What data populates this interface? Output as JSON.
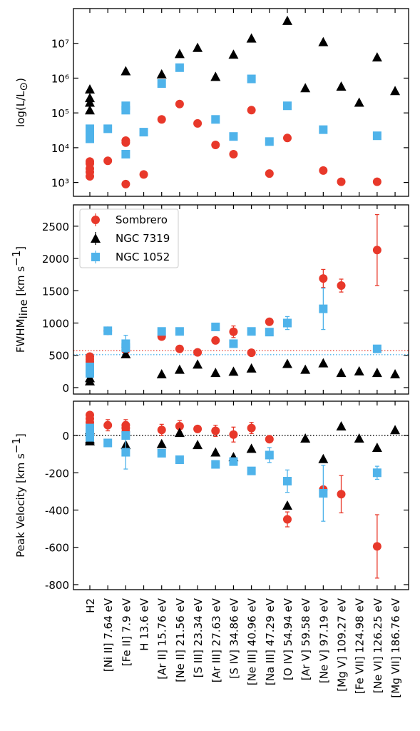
{
  "chart_data": [
    {
      "type": "scatter",
      "log_y": true,
      "ylabel": [
        [
          "log(L/L",
          ""
        ],
        [
          "⊙",
          "sub"
        ],
        [
          ")",
          ""
        ]
      ],
      "ylim": [
        400,
        100000000
      ],
      "yticks": [
        {
          "value": 1000,
          "label": "10³"
        },
        {
          "value": 10000,
          "label": "10⁴"
        },
        {
          "value": 100000,
          "label": "10⁵"
        },
        {
          "value": 1000000,
          "label": "10⁶"
        },
        {
          "value": 10000000,
          "label": "10⁷"
        }
      ],
      "series": [
        {
          "color": "#e8382a",
          "marker": "o",
          "x": [
            "H2",
            "H2",
            "H2",
            "H2",
            "H2",
            "[Ni II] 7.64 eV",
            "[Fe II] 7.9 eV",
            "[Fe II] 7.9 eV",
            "[Fe II] 7.9 eV",
            "H 13.6 eV",
            "[Ar II] 15.76 eV",
            "[Ne II] 21.56 eV",
            "[S III] 23.34 eV",
            "[Ar III] 27.63 eV",
            "[S IV] 34.86 eV",
            "[Ne III] 40.96 eV",
            "[Na III] 47.29 eV",
            "[O IV] 54.94 eV",
            "[Ne V] 97.19 eV",
            "[Mg V] 109.27 eV",
            "[Ne VI] 126.25 eV"
          ],
          "values": [
            4000,
            3500,
            2500,
            2000,
            1500,
            4200,
            900,
            14000,
            16000,
            1700,
            65000,
            180000,
            50000,
            12000,
            6500,
            120000,
            1800,
            19000,
            2200,
            1050,
            1050
          ]
        },
        {
          "color": "#000000",
          "marker": "^",
          "x": [
            "H2",
            "H2",
            "H2",
            "H2",
            "[Fe II] 7.9 eV",
            "[Ar II] 15.76 eV",
            "[Ne II] 21.56 eV",
            "[S III] 23.34 eV",
            "[Ar III] 27.63 eV",
            "[S IV] 34.86 eV",
            "[Ne III] 40.96 eV",
            "[O IV] 54.94 eV",
            "[Ar V] 59.58 eV",
            "[Ne V] 97.19 eV",
            "[Mg V] 109.27 eV",
            "[Fe VII] 124.98 eV",
            "[Ne VI] 126.25 eV",
            "[Mg VII] 186.76 eV"
          ],
          "values": [
            480000,
            270000,
            200000,
            120000,
            1600000,
            1300000,
            5000000,
            7500000,
            1100000,
            4800000,
            14000000,
            45000000,
            520000,
            11000000,
            580000,
            200000,
            4000000,
            430000
          ]
        },
        {
          "color": "#4fb3ea",
          "marker": "s",
          "x": [
            "H2",
            "H2",
            "H2",
            "H2",
            "[Ni II] 7.64 eV",
            "[Fe II] 7.9 eV",
            "[Fe II] 7.9 eV",
            "[Fe II] 7.9 eV",
            "H 13.6 eV",
            "[Ar II] 15.76 eV",
            "[Ne II] 21.56 eV",
            "[Ar III] 27.63 eV",
            "[S IV] 34.86 eV",
            "[Ne III] 40.96 eV",
            "[Na III] 47.29 eV",
            "[O IV] 54.94 eV",
            "[Ne V] 97.19 eV",
            "[Ne VI] 126.25 eV"
          ],
          "values": [
            35000,
            28000,
            22000,
            18000,
            35000,
            160000,
            120000,
            6500,
            28000,
            700000,
            2000000,
            65000,
            21000,
            950000,
            15000,
            160000,
            33000,
            22000
          ]
        }
      ]
    },
    {
      "type": "scatter",
      "legend": "upper left",
      "ylabel": [
        [
          "FWHM",
          ""
        ],
        [
          "line",
          "sub"
        ],
        [
          " [km s",
          ""
        ],
        [
          "−1",
          "sup"
        ],
        [
          "]",
          ""
        ]
      ],
      "ylim": [
        -100,
        2830
      ],
      "yticks": [
        0,
        500,
        1000,
        1500,
        2000,
        2500
      ],
      "hlines": [
        {
          "value": 570,
          "color": "#e8382a"
        },
        {
          "value": 510,
          "color": "#4fb3ea"
        }
      ],
      "series": [
        {
          "name": "Sombrero",
          "color": "#e8382a",
          "marker": "o",
          "x": [
            "H2",
            "H2",
            "H2",
            "H2",
            "[Ni II] 7.64 eV",
            "[Fe II] 7.9 eV",
            "[Fe II] 7.9 eV",
            "[Ar II] 15.76 eV",
            "[Ne II] 21.56 eV",
            "[S III] 23.34 eV",
            "[Ar III] 27.63 eV",
            "[S IV] 34.86 eV",
            "[Ne III] 40.96 eV",
            "[Na III] 47.29 eV",
            "[O IV] 54.94 eV",
            "[Ne V] 97.19 eV",
            "[Mg V] 109.27 eV",
            "[Ne VI] 126.25 eV"
          ],
          "values": [
            480,
            440,
            400,
            350,
            880,
            620,
            580,
            790,
            600,
            545,
            730,
            865,
            540,
            1020,
            1000,
            1690,
            1580,
            2130
          ],
          "errors": [
            null,
            null,
            null,
            null,
            50,
            null,
            null,
            null,
            null,
            null,
            null,
            90,
            null,
            null,
            null,
            140,
            100,
            550
          ]
        },
        {
          "name": "NGC 7319",
          "color": "#000000",
          "marker": "^",
          "x": [
            "H2",
            "H2",
            "[Fe II] 7.9 eV",
            "[Ar II] 15.76 eV",
            "[Ne II] 21.56 eV",
            "[S III] 23.34 eV",
            "[Ar III] 27.63 eV",
            "[S IV] 34.86 eV",
            "[Ne III] 40.96 eV",
            "[O IV] 54.94 eV",
            "[Ar V] 59.58 eV",
            "[Ne V] 97.19 eV",
            "[Mg V] 109.27 eV",
            "[Fe VII] 124.98 eV",
            "[Ne VI] 126.25 eV",
            "[Mg VII] 186.76 eV"
          ],
          "values": [
            150,
            100,
            520,
            210,
            280,
            360,
            230,
            250,
            300,
            370,
            280,
            380,
            230,
            255,
            230,
            210
          ]
        },
        {
          "name": "NGC 1052",
          "color": "#4fb3ea",
          "marker": "s",
          "x": [
            "H2",
            "H2",
            "H2",
            "[Ni II] 7.64 eV",
            "[Fe II] 7.9 eV",
            "[Fe II] 7.9 eV",
            "[Ar II] 15.76 eV",
            "[Ne II] 21.56 eV",
            "[Ar III] 27.63 eV",
            "[S IV] 34.86 eV",
            "[Ne III] 40.96 eV",
            "[Na III] 47.29 eV",
            "[O IV] 54.94 eV",
            "[Ne V] 97.19 eV",
            "[Ne VI] 126.25 eV"
          ],
          "values": [
            320,
            280,
            220,
            880,
            680,
            620,
            870,
            870,
            940,
            680,
            870,
            860,
            1000,
            1220,
            600
          ],
          "errors": [
            null,
            null,
            null,
            null,
            130,
            null,
            null,
            null,
            null,
            null,
            null,
            null,
            100,
            320,
            null
          ]
        }
      ]
    },
    {
      "type": "scatter",
      "ylabel": [
        [
          "Peak Velocity [km s",
          ""
        ],
        [
          "−1",
          "sup"
        ],
        [
          "]",
          ""
        ]
      ],
      "ylim": [
        -827,
        184
      ],
      "yticks": [
        -800,
        -600,
        -400,
        -200,
        0
      ],
      "hlines": [
        {
          "value": 0,
          "color": "#000000"
        }
      ],
      "categories": [
        "H2",
        "[Ni II] 7.64 eV",
        "[Fe II] 7.9 eV",
        "H 13.6 eV",
        "[Ar II] 15.76 eV",
        "[Ne II] 21.56 eV",
        "[S III] 23.34 eV",
        "[Ar III] 27.63 eV",
        "[S IV] 34.86 eV",
        "[Ne III] 40.96 eV",
        "[Na III] 47.29 eV",
        "[O IV] 54.94 eV",
        "[Ar V] 59.58 eV",
        "[Ne V] 97.19 eV",
        "[Mg V] 109.27 eV",
        "[Fe VII] 124.98 eV",
        "[Ne VI] 126.25 eV",
        "[Mg VII] 186.76 eV"
      ],
      "series": [
        {
          "color": "#e8382a",
          "marker": "o",
          "x": [
            "H2",
            "H2",
            "H2",
            "H2",
            "H2",
            "[Ni II] 7.64 eV",
            "[Fe II] 7.9 eV",
            "[Fe II] 7.9 eV",
            "[Fe II] 7.9 eV",
            "[Ar II] 15.76 eV",
            "[Ne II] 21.56 eV",
            "[S III] 23.34 eV",
            "[Ar III] 27.63 eV",
            "[S IV] 34.86 eV",
            "[Ne III] 40.96 eV",
            "[Na III] 47.29 eV",
            "[O IV] 54.94 eV",
            "[Ne V] 97.19 eV",
            "[Mg V] 109.27 eV",
            "[Ne VI] 126.25 eV"
          ],
          "values": [
            110,
            90,
            70,
            50,
            40,
            55,
            55,
            40,
            20,
            30,
            50,
            35,
            25,
            5,
            40,
            -20,
            -450,
            -290,
            -315,
            -595
          ],
          "errors": [
            null,
            null,
            null,
            null,
            null,
            30,
            30,
            null,
            null,
            30,
            30,
            null,
            30,
            40,
            30,
            null,
            40,
            null,
            100,
            170
          ]
        },
        {
          "color": "#000000",
          "marker": "^",
          "x": [
            "H2",
            "H2",
            "H2",
            "[Fe II] 7.9 eV",
            "[Ar II] 15.76 eV",
            "[Ne II] 21.56 eV",
            "[S III] 23.34 eV",
            "[Ar III] 27.63 eV",
            "[S IV] 34.86 eV",
            "[Ne III] 40.96 eV",
            "[O IV] 54.94 eV",
            "[Ar V] 59.58 eV",
            "[Ne V] 97.19 eV",
            "[Mg V] 109.27 eV",
            "[Fe VII] 124.98 eV",
            "[Ne VI] 126.25 eV",
            "[Mg VII] 186.76 eV"
          ],
          "values": [
            30,
            -20,
            -30,
            -50,
            -45,
            15,
            -50,
            -90,
            -115,
            -70,
            -375,
            -15,
            -125,
            50,
            -15,
            -65,
            30
          ]
        },
        {
          "color": "#4fb3ea",
          "marker": "s",
          "x": [
            "H2",
            "H2",
            "H2",
            "[Ni II] 7.64 eV",
            "[Fe II] 7.9 eV",
            "[Fe II] 7.9 eV",
            "[Ar II] 15.76 eV",
            "[Ne II] 21.56 eV",
            "[Ar III] 27.63 eV",
            "[S IV] 34.86 eV",
            "[Ne III] 40.96 eV",
            "[Na III] 47.29 eV",
            "[O IV] 54.94 eV",
            "[Ne V] 97.19 eV",
            "[Ne VI] 126.25 eV"
          ],
          "values": [
            40,
            10,
            -10,
            -40,
            0,
            -90,
            -95,
            -130,
            -155,
            -140,
            -190,
            -105,
            -245,
            -310,
            -200
          ],
          "errors": [
            null,
            null,
            null,
            null,
            null,
            90,
            null,
            null,
            null,
            null,
            null,
            40,
            60,
            150,
            35
          ]
        }
      ]
    }
  ]
}
